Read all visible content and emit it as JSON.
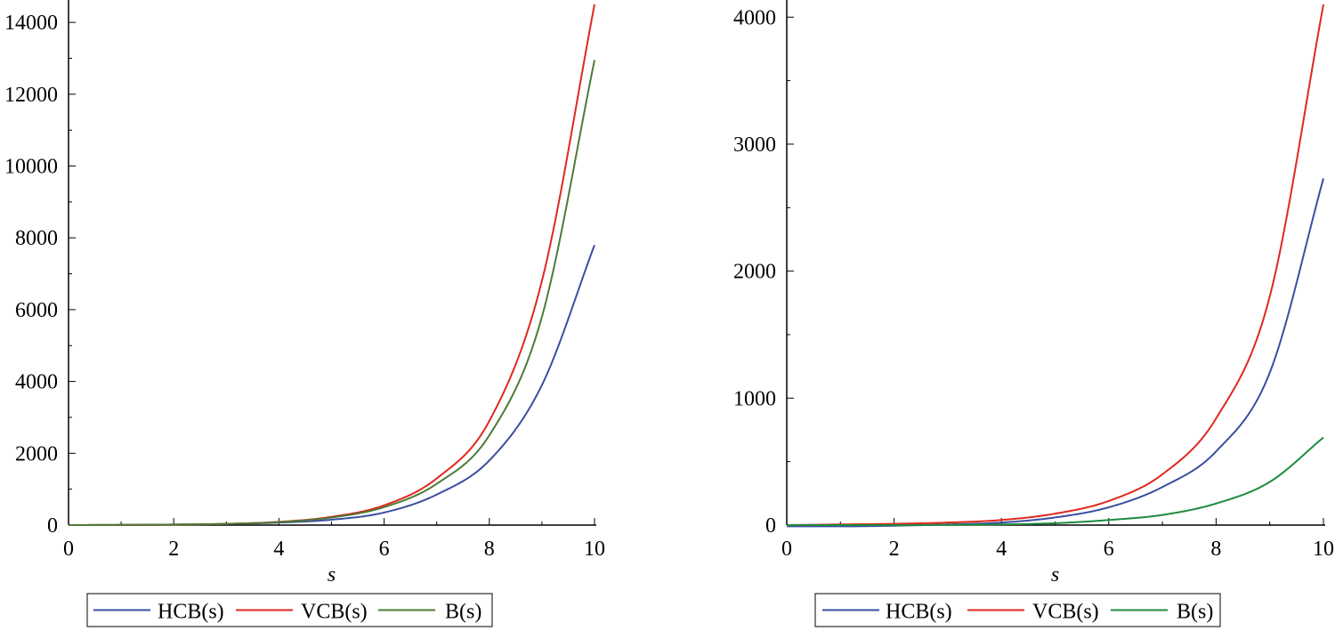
{
  "chart_data": [
    {
      "type": "line",
      "title": "",
      "xlabel": "s",
      "ylabel": "",
      "xlim": [
        0,
        10
      ],
      "ylim": [
        0,
        14500
      ],
      "xticks": [
        0,
        2,
        4,
        6,
        8,
        10
      ],
      "yticks": [
        0,
        2000,
        4000,
        6000,
        8000,
        10000,
        12000,
        14000
      ],
      "grid": false,
      "legend_position": "bottom",
      "x": [
        0,
        1,
        2,
        3,
        4,
        5,
        6,
        7,
        8,
        9,
        10
      ],
      "series": [
        {
          "name": "HCB(s)",
          "color": "#3a4fa0",
          "values": [
            0,
            5,
            15,
            30,
            70,
            150,
            350,
            850,
            1800,
            3900,
            7800
          ]
        },
        {
          "name": "VCB(s)",
          "color": "#e0281e",
          "values": [
            0,
            5,
            15,
            35,
            90,
            230,
            550,
            1300,
            2900,
            6800,
            14500
          ]
        },
        {
          "name": "B(s)",
          "color": "#4e7a35",
          "values": [
            0,
            5,
            15,
            35,
            85,
            210,
            500,
            1150,
            2500,
            5800,
            12950
          ]
        }
      ]
    },
    {
      "type": "line",
      "title": "",
      "xlabel": "s",
      "ylabel": "",
      "xlim": [
        0,
        10
      ],
      "ylim": [
        0,
        4100
      ],
      "xticks": [
        0,
        2,
        4,
        6,
        8,
        10
      ],
      "yticks": [
        0,
        1000,
        2000,
        3000,
        4000
      ],
      "grid": false,
      "legend_position": "bottom",
      "x": [
        0,
        1,
        2,
        3,
        4,
        5,
        6,
        7,
        8,
        9,
        10
      ],
      "series": [
        {
          "name": "HCB(s)",
          "color": "#3a4fa0",
          "values": [
            -10,
            -10,
            -5,
            5,
            20,
            60,
            140,
            300,
            580,
            1200,
            2730
          ]
        },
        {
          "name": "VCB(s)",
          "color": "#e0281e",
          "values": [
            0,
            5,
            10,
            20,
            40,
            90,
            190,
            400,
            840,
            1800,
            4100
          ]
        },
        {
          "name": "B(s)",
          "color": "#1f8a3f",
          "values": [
            0,
            0,
            0,
            2,
            5,
            15,
            40,
            80,
            170,
            340,
            690
          ]
        }
      ]
    }
  ]
}
